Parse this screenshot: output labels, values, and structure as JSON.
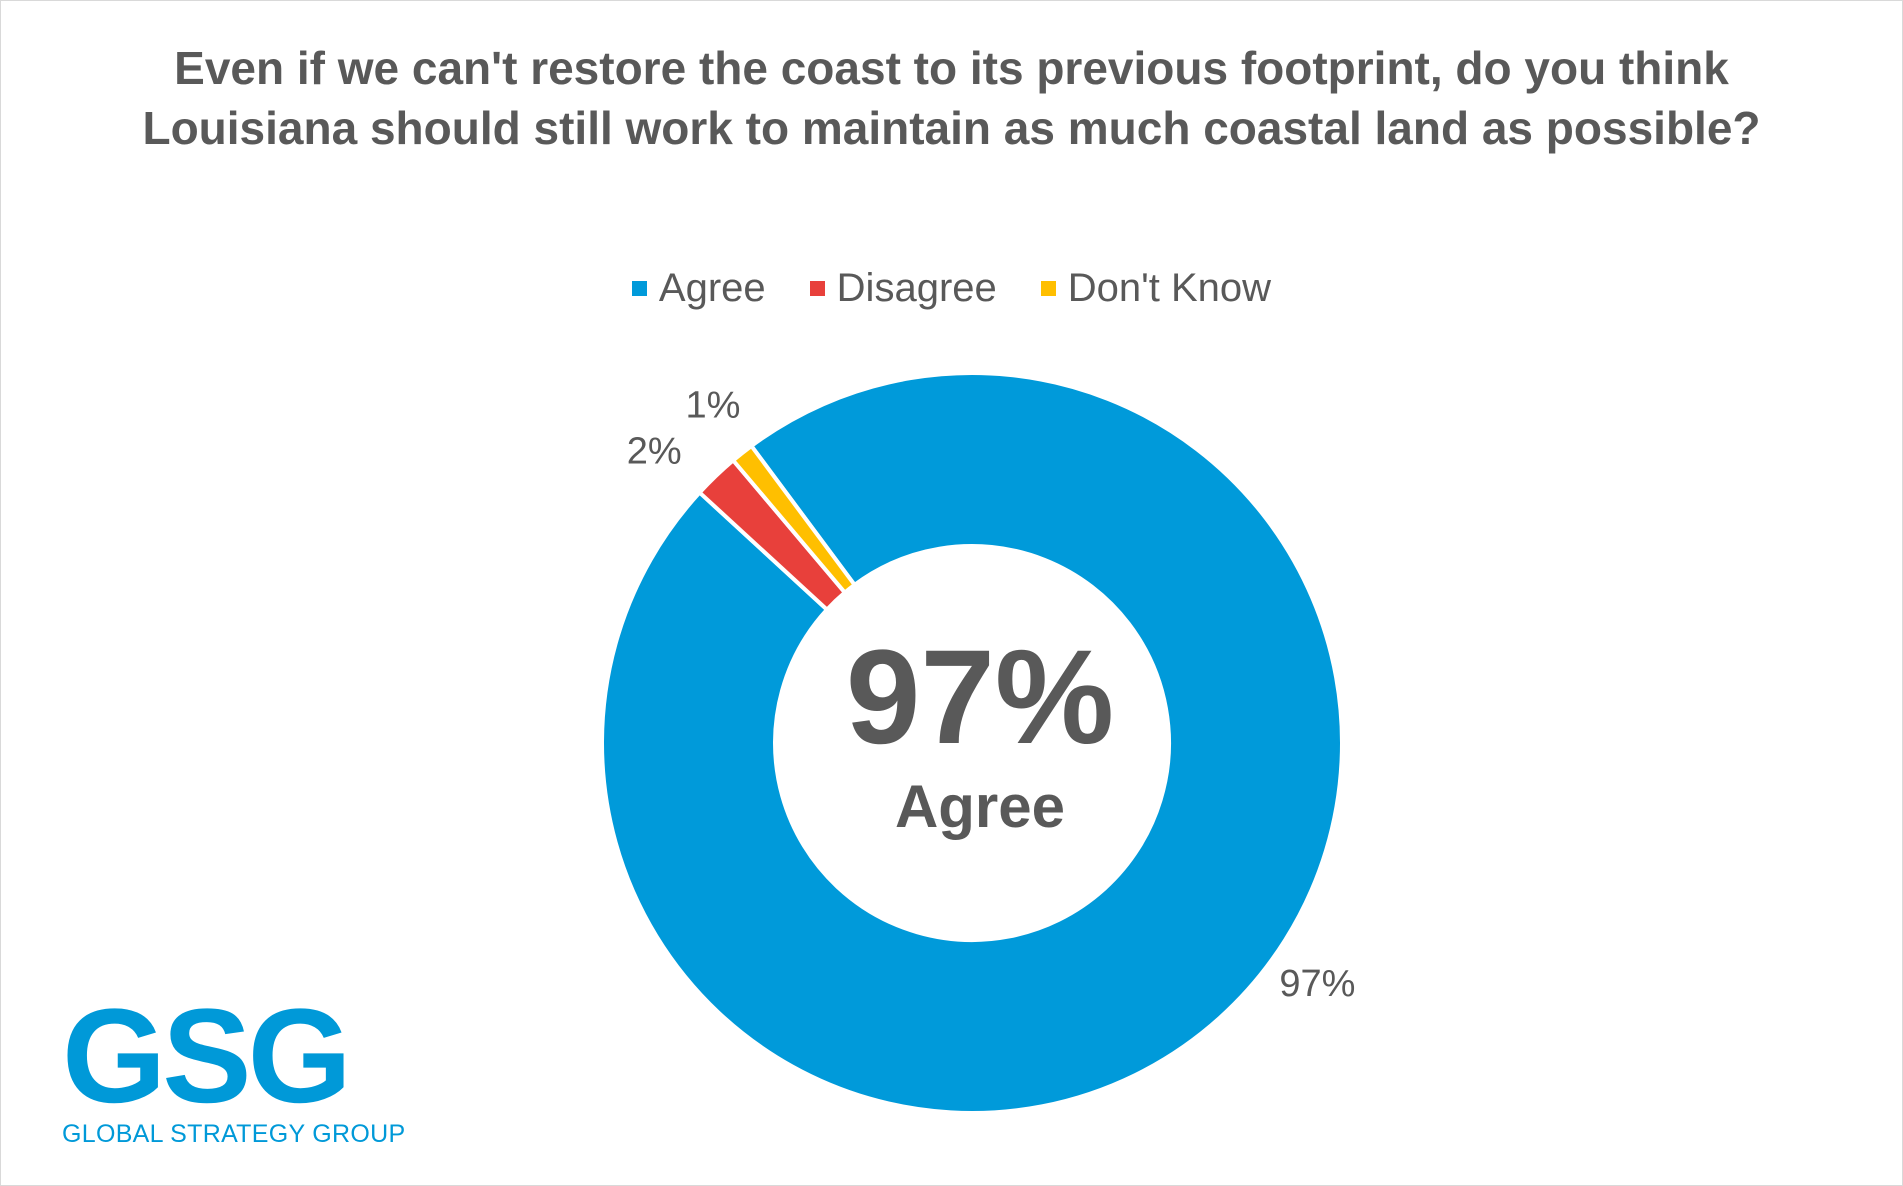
{
  "chart_data": {
    "type": "pie",
    "title": "Even if we can't restore the coast to its previous footprint, do you think Louisiana should still work to maintain as much coastal land as possible?",
    "categories": [
      "Agree",
      "Disagree",
      "Don't Know"
    ],
    "values": [
      97,
      2,
      1
    ],
    "data_labels": [
      "97%",
      "2%",
      "1%"
    ],
    "colors": [
      "#009ADA",
      "#E8403B",
      "#FFBF00"
    ],
    "legend_position": "top",
    "center_value": "97%",
    "center_label": "Agree"
  },
  "logo": {
    "text": "GSG",
    "subtitle": "GLOBAL STRATEGY GROUP",
    "color": "#0099D8"
  }
}
